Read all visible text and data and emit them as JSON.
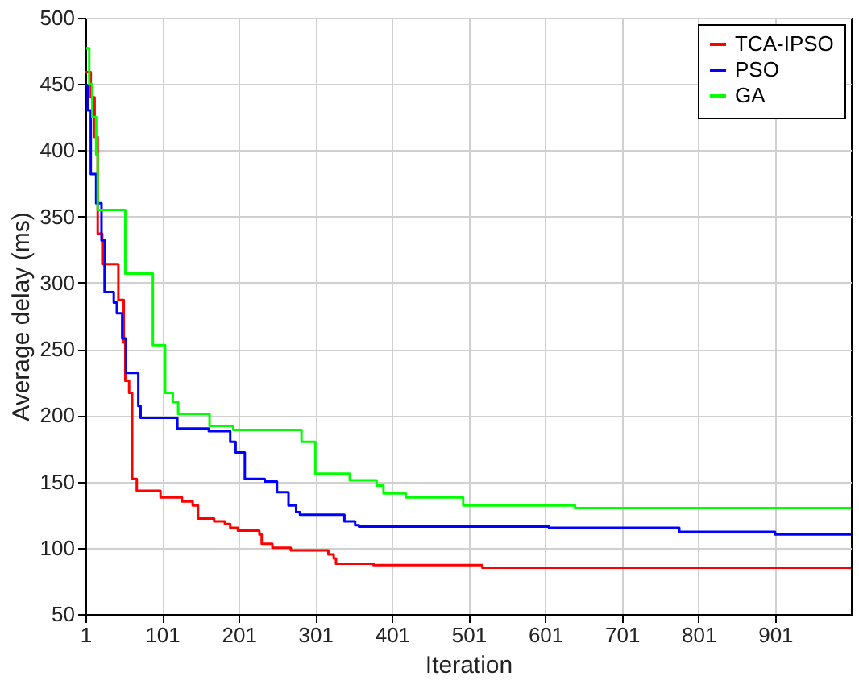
{
  "chart_data": {
    "type": "step",
    "xlabel": "Iteration",
    "ylabel": "Average delay (ms)",
    "xlim": [
      1,
      1000
    ],
    "xticks": [
      1,
      101,
      201,
      301,
      401,
      501,
      601,
      701,
      801,
      901
    ],
    "ylim": [
      50,
      500
    ],
    "yticks": [
      50,
      100,
      150,
      200,
      250,
      300,
      350,
      400,
      450,
      500
    ],
    "grid": true,
    "legend": "top right",
    "marker": "none",
    "line_style": "solid",
    "series": [
      {
        "name": "TCA-IPSO",
        "color": "#ff0000",
        "x": [
          1,
          8,
          13,
          17,
          23,
          44,
          51,
          53,
          58,
          62,
          68,
          99,
          127,
          141,
          148,
          169,
          183,
          190,
          200,
          228,
          231,
          245,
          269,
          318,
          325,
          328,
          377,
          519,
          1000
        ],
        "values": [
          459,
          440,
          410,
          337,
          314,
          287,
          255,
          226,
          217,
          152,
          143,
          138,
          135,
          132,
          122,
          120,
          118,
          115,
          113,
          110,
          103,
          100,
          98,
          95,
          92,
          88,
          87,
          85,
          85
        ]
      },
      {
        "name": "PSO",
        "color": "#0000ff",
        "x": [
          1,
          4,
          8,
          15,
          22,
          26,
          38,
          42,
          49,
          54,
          70,
          73,
          121,
          162,
          190,
          197,
          209,
          235,
          251,
          266,
          276,
          281,
          339,
          353,
          358,
          606,
          776,
          901,
          1000
        ],
        "values": [
          449,
          430,
          382,
          360,
          332,
          293,
          285,
          277,
          258,
          232,
          207,
          198,
          190,
          188,
          180,
          172,
          152,
          150,
          142,
          132,
          127,
          125,
          120,
          117,
          116,
          115,
          112,
          110,
          110
        ]
      },
      {
        "name": "GA",
        "color": "#00ff00",
        "x": [
          2,
          6,
          10,
          15,
          17,
          53,
          89,
          105,
          115,
          122,
          163,
          194,
          283,
          301,
          346,
          381,
          390,
          419,
          494,
          640,
          1000
        ],
        "values": [
          477,
          450,
          425,
          397,
          355,
          307,
          253,
          217,
          210,
          201,
          192,
          189,
          180,
          156,
          151,
          147,
          141,
          138,
          132,
          130,
          130
        ]
      }
    ]
  }
}
